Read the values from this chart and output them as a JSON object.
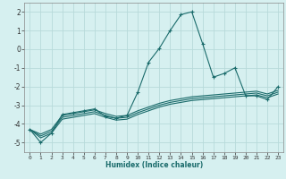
{
  "xlabel": "Humidex (Indice chaleur)",
  "ylabel": "",
  "bg_color": "#d6f0f0",
  "grid_color": "#b8dada",
  "line_color": "#1a6b6b",
  "xlim": [
    -0.5,
    23.5
  ],
  "ylim": [
    -5.5,
    2.5
  ],
  "yticks": [
    -5,
    -4,
    -3,
    -2,
    -1,
    0,
    1,
    2
  ],
  "xticks": [
    0,
    1,
    2,
    3,
    4,
    5,
    6,
    7,
    8,
    9,
    10,
    11,
    12,
    13,
    14,
    15,
    16,
    17,
    18,
    19,
    20,
    21,
    22,
    23
  ],
  "series": [
    {
      "x": [
        0,
        1,
        2,
        3,
        4,
        5,
        6,
        7,
        8,
        9,
        10,
        11,
        12,
        13,
        14,
        15,
        16,
        17,
        18,
        19,
        20,
        21,
        22,
        23
      ],
      "y": [
        -4.3,
        -5.0,
        -4.5,
        -3.5,
        -3.4,
        -3.3,
        -3.2,
        -3.6,
        -3.7,
        -3.55,
        -2.3,
        -0.7,
        0.05,
        1.0,
        1.85,
        2.0,
        0.3,
        -1.5,
        -1.3,
        -1.0,
        -2.5,
        -2.5,
        -2.7,
        -2.0
      ],
      "marker": "+"
    },
    {
      "x": [
        0,
        1,
        2,
        3,
        4,
        5,
        6,
        7,
        8,
        9,
        10,
        11,
        12,
        13,
        14,
        15,
        16,
        17,
        18,
        19,
        20,
        21,
        22,
        23
      ],
      "y": [
        -4.3,
        -4.55,
        -4.3,
        -3.55,
        -3.45,
        -3.35,
        -3.25,
        -3.45,
        -3.6,
        -3.55,
        -3.3,
        -3.1,
        -2.9,
        -2.75,
        -2.65,
        -2.55,
        -2.5,
        -2.45,
        -2.4,
        -2.35,
        -2.3,
        -2.25,
        -2.4,
        -2.2
      ],
      "marker": null
    },
    {
      "x": [
        0,
        1,
        2,
        3,
        4,
        5,
        6,
        7,
        8,
        9,
        10,
        11,
        12,
        13,
        14,
        15,
        16,
        17,
        18,
        19,
        20,
        21,
        22,
        23
      ],
      "y": [
        -4.3,
        -4.65,
        -4.4,
        -3.65,
        -3.55,
        -3.45,
        -3.35,
        -3.55,
        -3.7,
        -3.65,
        -3.4,
        -3.2,
        -3.0,
        -2.85,
        -2.75,
        -2.65,
        -2.6,
        -2.55,
        -2.5,
        -2.45,
        -2.4,
        -2.35,
        -2.5,
        -2.3
      ],
      "marker": null
    },
    {
      "x": [
        0,
        1,
        2,
        3,
        4,
        5,
        6,
        7,
        8,
        9,
        10,
        11,
        12,
        13,
        14,
        15,
        16,
        17,
        18,
        19,
        20,
        21,
        22,
        23
      ],
      "y": [
        -4.3,
        -4.75,
        -4.5,
        -3.75,
        -3.65,
        -3.55,
        -3.45,
        -3.65,
        -3.8,
        -3.75,
        -3.5,
        -3.3,
        -3.1,
        -2.95,
        -2.85,
        -2.75,
        -2.7,
        -2.65,
        -2.6,
        -2.55,
        -2.5,
        -2.45,
        -2.6,
        -2.4
      ],
      "marker": null
    }
  ]
}
